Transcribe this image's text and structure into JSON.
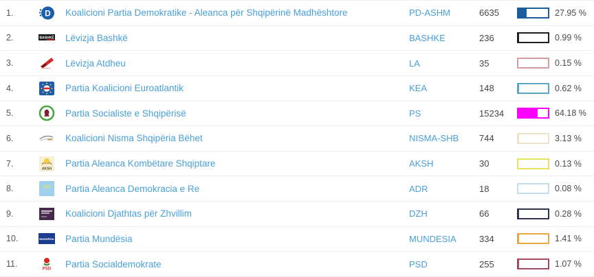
{
  "accent": {
    "link_color": "#4aa0d8",
    "text_color": "#4a4a4a",
    "divider_color": "#ececec"
  },
  "table": {
    "rows": [
      {
        "rank": "1.",
        "name": "Koalicioni Partia Demokratike - Aleanca për Shqipërinë Madhështore",
        "abbr": "PD-ASHM",
        "votes": "6635",
        "percent": 27.95,
        "percent_label": "27.95 %",
        "bar_color": "#1b5e9b",
        "logo": "pd-logo"
      },
      {
        "rank": "2.",
        "name": "Lëvizja Bashkë",
        "abbr": "BASHKE",
        "votes": "236",
        "percent": 0.99,
        "percent_label": "0.99 %",
        "bar_color": "#1f1f1f",
        "logo": "bashke-logo"
      },
      {
        "rank": "3.",
        "name": "Lëvizja Atdheu",
        "abbr": "LA",
        "votes": "35",
        "percent": 0.15,
        "percent_label": "0.15 %",
        "bar_color": "#d39da3",
        "logo": "la-logo"
      },
      {
        "rank": "4.",
        "name": "Partia Koalicioni Euroatlantik",
        "abbr": "KEA",
        "votes": "148",
        "percent": 0.62,
        "percent_label": "0.62 %",
        "bar_color": "#56a7c8",
        "logo": "kea-logo"
      },
      {
        "rank": "5.",
        "name": "Partia Socialiste e Shqipërisë",
        "abbr": "PS",
        "votes": "15234",
        "percent": 64.18,
        "percent_label": "64.18 %",
        "bar_color": "#ff00ff",
        "logo": "ps-logo"
      },
      {
        "rank": "6.",
        "name": "Koalicioni Nisma Shqipëria Bëhet",
        "abbr": "NISMA-SHB",
        "votes": "744",
        "percent": 3.13,
        "percent_label": "3.13 %",
        "bar_color": "#ebe3c9",
        "logo": "nisma-logo"
      },
      {
        "rank": "7.",
        "name": "Partia Aleanca Kombëtare Shqiptare",
        "abbr": "AKSH",
        "votes": "30",
        "percent": 0.13,
        "percent_label": "0.13 %",
        "bar_color": "#e8e25e",
        "logo": "aksh-logo"
      },
      {
        "rank": "8.",
        "name": "Partia Aleanca Demokracia e Re",
        "abbr": "ADR",
        "votes": "18",
        "percent": 0.08,
        "percent_label": "0.08 %",
        "bar_color": "#c3ddea",
        "logo": "adr-logo"
      },
      {
        "rank": "9.",
        "name": "Koalicioni Djathtas për Zhvillim",
        "abbr": "DZH",
        "votes": "66",
        "percent": 0.28,
        "percent_label": "0.28 %",
        "bar_color": "#30334a",
        "logo": "dzh-logo"
      },
      {
        "rank": "10.",
        "name": "Partia Mundësia",
        "abbr": "MUNDESIA",
        "votes": "334",
        "percent": 1.41,
        "percent_label": "1.41 %",
        "bar_color": "#e9a83f",
        "logo": "mundesia-logo"
      },
      {
        "rank": "11.",
        "name": "Partia Socialdemokrate",
        "abbr": "PSD",
        "votes": "255",
        "percent": 1.07,
        "percent_label": "1.07 %",
        "bar_color": "#a34a5e",
        "logo": "psd-logo"
      }
    ]
  }
}
